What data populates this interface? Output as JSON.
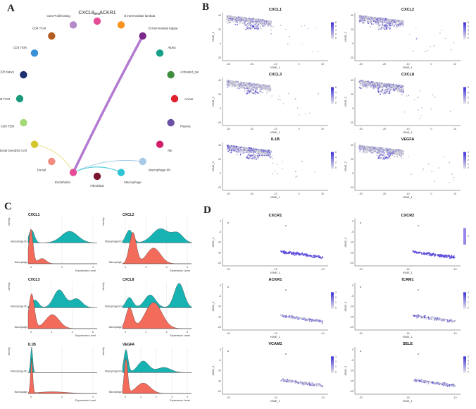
{
  "panel_labels": [
    "A",
    "B",
    "C",
    "D"
  ],
  "panelA": {
    "title": "CXCL8 – ACKR1",
    "nodes": [
      {
        "name": "Beta",
        "color": "#e64d97"
      },
      {
        "name": "B intermediate lambda",
        "color": "#f7931e"
      },
      {
        "name": "B intermediate kappa",
        "color": "#7b2a8b"
      },
      {
        "name": "Alpha",
        "color": "#16a085"
      },
      {
        "name": "Activated_stellate",
        "color": "#3e8e3e"
      },
      {
        "name": "Acinar",
        "color": "#e0202a"
      },
      {
        "name": "Plasma",
        "color": "#6b4fa3"
      },
      {
        "name": "NK",
        "color": "#d11f6b"
      },
      {
        "name": "Macrophage M1",
        "color": "#a7c9e5"
      },
      {
        "name": "Macrophage",
        "color": "#2ec4d6"
      },
      {
        "name": "Fibroblast",
        "color": "#7a1530"
      },
      {
        "name": "Endothelial",
        "color": "#e64d97"
      },
      {
        "name": "Ductal",
        "color": "#f28b82"
      },
      {
        "name": "Conventional Dendritic Cell",
        "color": "#d4c62f"
      },
      {
        "name": "CD8 TEM",
        "color": "#a3d977"
      },
      {
        "name": "CD8 TCM",
        "color": "#1a9a7a"
      },
      {
        "name": "CD8 Naive",
        "color": "#1c2f6e"
      },
      {
        "name": "CD4 TEM",
        "color": "#3a8fd9"
      },
      {
        "name": "CD4 TCM",
        "color": "#b45b1f"
      },
      {
        "name": "CD4 Proliferating",
        "color": "#b48ac9"
      }
    ],
    "edges": [
      {
        "from": "B intermediate kappa",
        "to": "Endothelial",
        "color": "#b37ad1",
        "weight": 3.5
      },
      {
        "from": "Conventional Dendritic Cell",
        "to": "Endothelial",
        "color": "#e3d66b",
        "weight": 0.8
      },
      {
        "from": "Macrophage M1",
        "to": "Endothelial",
        "color": "#9cc4e4",
        "weight": 0.8
      },
      {
        "from": "Macrophage",
        "to": "Endothelial",
        "color": "#5ad0de",
        "weight": 1.2
      }
    ]
  },
  "panelB": {
    "genes": [
      "CXCL1",
      "CXCL2",
      "CXCL3",
      "CXCL8",
      "IL1B",
      "VEGFA"
    ],
    "xlabel": "tSNE_1",
    "ylabel": "tSNE_2",
    "xticks": [
      "-30",
      "-20",
      "-10",
      "0",
      "10"
    ],
    "yticks": [
      "40",
      "20",
      "0",
      "-20"
    ],
    "legends": [
      [
        "8",
        "6",
        "4",
        "2",
        "0"
      ],
      [
        "8",
        "6",
        "4",
        "2",
        "0"
      ],
      [
        "6",
        "4",
        "2",
        "0"
      ],
      [
        "6",
        "4",
        "2",
        "0"
      ],
      [
        "6",
        "4",
        "2",
        "0"
      ],
      [
        "4",
        "3",
        "2",
        "1",
        "0"
      ]
    ],
    "low_color": "#d9d9d9",
    "high_color": "#3b2fd6"
  },
  "panelC": {
    "ylabel": "Identity",
    "xlabel": "Expression Level",
    "rows": [
      "Macrophage M1",
      "Macrophage"
    ],
    "colors": {
      "Macrophage M1": "#17b3b3",
      "Macrophage": "#f26b5b"
    },
    "genes": [
      {
        "name": "CXCL1",
        "xticks": [
          "0",
          "2",
          "4"
        ]
      },
      {
        "name": "CXCL2",
        "xticks": [
          "0",
          "2",
          "4",
          "6"
        ]
      },
      {
        "name": "CXCL3",
        "xticks": [
          "0",
          "2",
          "4",
          "6"
        ]
      },
      {
        "name": "CXCL8",
        "xticks": [
          "0",
          "2",
          "4",
          "6"
        ]
      },
      {
        "name": "IL1B",
        "xticks": [
          "0",
          "2",
          "4"
        ]
      },
      {
        "name": "VEGFA",
        "xticks": [
          "0",
          "1",
          "2",
          "3",
          "4"
        ]
      }
    ]
  },
  "panelD": {
    "genes": [
      "CXCR1",
      "CXCR2",
      "ACKR1",
      "ICAM1",
      "VCAM1",
      "SELE"
    ],
    "xlabel": "tSNE_1",
    "ylabel": "tSNE_2",
    "xticks": [
      "-20",
      "-15",
      "-10"
    ],
    "yticks": [
      "0",
      "-5",
      "-10",
      "-15",
      "-20"
    ],
    "legends": [
      [],
      [
        "0"
      ],
      [
        "3",
        "2",
        "1",
        "0"
      ],
      [
        "3",
        "2",
        "1",
        "0"
      ],
      [
        "3",
        "2",
        "1",
        "0"
      ],
      [
        "4",
        "3",
        "2",
        "1",
        "0"
      ]
    ]
  }
}
